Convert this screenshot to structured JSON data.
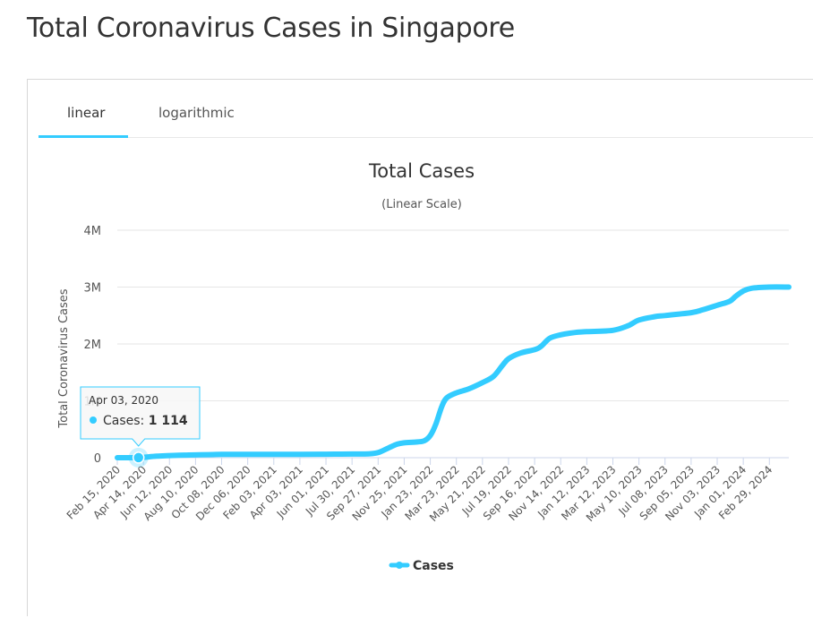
{
  "page": {
    "title": "Total Coronavirus Cases in Singapore"
  },
  "tabs": [
    {
      "label": "linear",
      "active": true
    },
    {
      "label": "logarithmic",
      "active": false
    }
  ],
  "colors": {
    "series": "#33ccff",
    "grid": "#e6e6e6",
    "tab_underline": "#33ccff"
  },
  "tooltip": {
    "date": "Apr 03, 2020",
    "label": "Cases: ",
    "value": "1 114"
  },
  "chart_data": {
    "type": "line",
    "title": "Total Cases",
    "subtitle": "(Linear Scale)",
    "ylabel": "Total Coronavirus Cases",
    "xlabel": "",
    "ylim": [
      0,
      4000000
    ],
    "y_ticks": [
      {
        "value": 0,
        "label": "0"
      },
      {
        "value": 1000000,
        "label": "1M"
      },
      {
        "value": 2000000,
        "label": "2M"
      },
      {
        "value": 3000000,
        "label": "3M"
      },
      {
        "value": 4000000,
        "label": "4M"
      }
    ],
    "x_range": [
      "2020-02-15",
      "2024-04-13"
    ],
    "x_tick_labels": [
      {
        "date": "2020-02-15",
        "label": "Feb 15, 2020"
      },
      {
        "date": "2020-04-14",
        "label": "Apr 14, 2020"
      },
      {
        "date": "2020-06-12",
        "label": "Jun 12, 2020"
      },
      {
        "date": "2020-08-10",
        "label": "Aug 10, 2020"
      },
      {
        "date": "2020-10-08",
        "label": "Oct 08, 2020"
      },
      {
        "date": "2020-12-06",
        "label": "Dec 06, 2020"
      },
      {
        "date": "2021-02-03",
        "label": "Feb 03, 2021"
      },
      {
        "date": "2021-04-03",
        "label": "Apr 03, 2021"
      },
      {
        "date": "2021-06-01",
        "label": "Jun 01, 2021"
      },
      {
        "date": "2021-07-30",
        "label": "Jul 30, 2021"
      },
      {
        "date": "2021-09-27",
        "label": "Sep 27, 2021"
      },
      {
        "date": "2021-11-25",
        "label": "Nov 25, 2021"
      },
      {
        "date": "2022-01-23",
        "label": "Jan 23, 2022"
      },
      {
        "date": "2022-03-23",
        "label": "Mar 23, 2022"
      },
      {
        "date": "2022-05-21",
        "label": "May 21, 2022"
      },
      {
        "date": "2022-07-19",
        "label": "Jul 19, 2022"
      },
      {
        "date": "2022-09-16",
        "label": "Sep 16, 2022"
      },
      {
        "date": "2022-11-14",
        "label": "Nov 14, 2022"
      },
      {
        "date": "2023-01-12",
        "label": "Jan 12, 2023"
      },
      {
        "date": "2023-03-12",
        "label": "Mar 12, 2023"
      },
      {
        "date": "2023-05-10",
        "label": "May 10, 2023"
      },
      {
        "date": "2023-07-08",
        "label": "Jul 08, 2023"
      },
      {
        "date": "2023-09-05",
        "label": "Sep 05, 2023"
      },
      {
        "date": "2023-11-03",
        "label": "Nov 03, 2023"
      },
      {
        "date": "2024-01-01",
        "label": "Jan 01, 2024"
      },
      {
        "date": "2024-02-29",
        "label": "Feb 29, 2024"
      }
    ],
    "legend": {
      "position": "bottom-center"
    },
    "grid": true,
    "series": [
      {
        "name": "Cases",
        "points": [
          {
            "x": "2020-02-15",
            "y": 72
          },
          {
            "x": "2020-04-03",
            "y": 1114
          },
          {
            "x": "2020-05-15",
            "y": 26000
          },
          {
            "x": "2020-07-15",
            "y": 46000
          },
          {
            "x": "2020-10-08",
            "y": 57900
          },
          {
            "x": "2020-12-06",
            "y": 58200
          },
          {
            "x": "2021-02-03",
            "y": 59600
          },
          {
            "x": "2021-04-03",
            "y": 60400
          },
          {
            "x": "2021-06-01",
            "y": 62000
          },
          {
            "x": "2021-07-30",
            "y": 64800
          },
          {
            "x": "2021-09-05",
            "y": 68000
          },
          {
            "x": "2021-09-27",
            "y": 90000
          },
          {
            "x": "2021-10-20",
            "y": 170000
          },
          {
            "x": "2021-11-10",
            "y": 240000
          },
          {
            "x": "2021-11-25",
            "y": 261000
          },
          {
            "x": "2021-12-25",
            "y": 277000
          },
          {
            "x": "2022-01-10",
            "y": 300000
          },
          {
            "x": "2022-01-23",
            "y": 390000
          },
          {
            "x": "2022-02-05",
            "y": 600000
          },
          {
            "x": "2022-02-18",
            "y": 900000
          },
          {
            "x": "2022-03-01",
            "y": 1050000
          },
          {
            "x": "2022-03-23",
            "y": 1140000
          },
          {
            "x": "2022-04-20",
            "y": 1210000
          },
          {
            "x": "2022-05-21",
            "y": 1320000
          },
          {
            "x": "2022-06-15",
            "y": 1430000
          },
          {
            "x": "2022-07-05",
            "y": 1620000
          },
          {
            "x": "2022-07-19",
            "y": 1740000
          },
          {
            "x": "2022-08-15",
            "y": 1840000
          },
          {
            "x": "2022-09-16",
            "y": 1900000
          },
          {
            "x": "2022-10-01",
            "y": 1960000
          },
          {
            "x": "2022-10-20",
            "y": 2100000
          },
          {
            "x": "2022-11-14",
            "y": 2160000
          },
          {
            "x": "2022-12-15",
            "y": 2200000
          },
          {
            "x": "2023-01-12",
            "y": 2215000
          },
          {
            "x": "2023-03-12",
            "y": 2240000
          },
          {
            "x": "2023-04-15",
            "y": 2320000
          },
          {
            "x": "2023-05-10",
            "y": 2420000
          },
          {
            "x": "2023-06-15",
            "y": 2480000
          },
          {
            "x": "2023-07-08",
            "y": 2500000
          },
          {
            "x": "2023-09-05",
            "y": 2550000
          },
          {
            "x": "2023-10-01",
            "y": 2600000
          },
          {
            "x": "2023-11-03",
            "y": 2680000
          },
          {
            "x": "2023-12-01",
            "y": 2750000
          },
          {
            "x": "2023-12-15",
            "y": 2840000
          },
          {
            "x": "2024-01-01",
            "y": 2930000
          },
          {
            "x": "2024-01-20",
            "y": 2980000
          },
          {
            "x": "2024-02-29",
            "y": 3000000
          },
          {
            "x": "2024-04-13",
            "y": 3000000
          }
        ]
      }
    ]
  }
}
